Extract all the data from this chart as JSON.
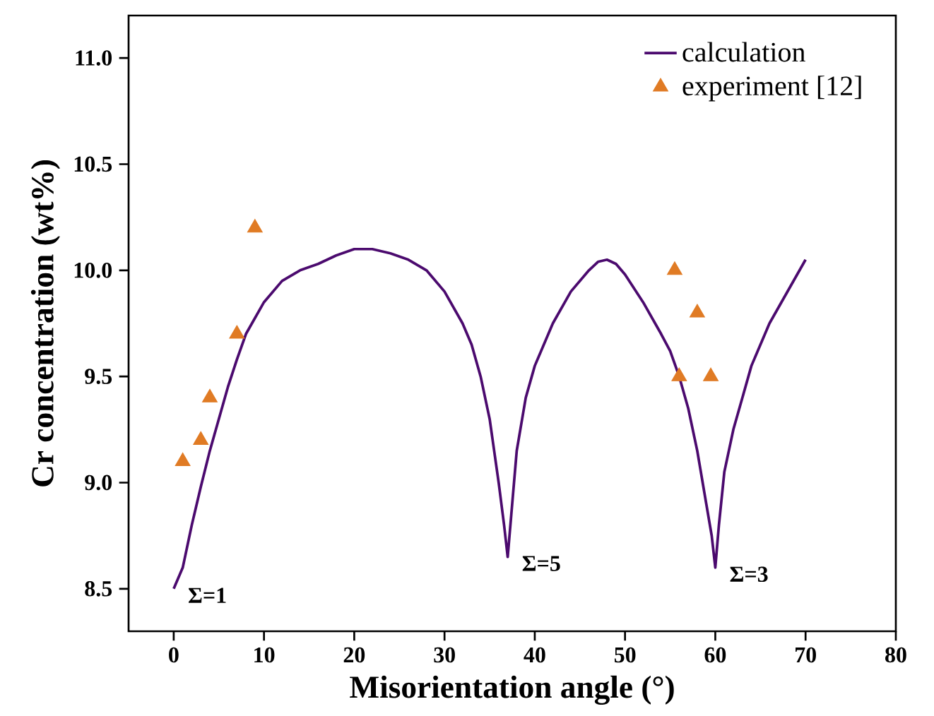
{
  "chart_data": {
    "type": "line",
    "xlabel": "Misorientation angle (°)",
    "ylabel": "Cr concentration (wt%)",
    "xlim": [
      -5,
      80
    ],
    "ylim": [
      8.3,
      11.2
    ],
    "xticks": [
      0,
      10,
      20,
      30,
      40,
      50,
      60,
      70,
      80
    ],
    "yticks": [
      {
        "value": 8.5,
        "label": "8.5"
      },
      {
        "value": 9.0,
        "label": "9.0"
      },
      {
        "value": 9.5,
        "label": "9.5"
      },
      {
        "value": 10.0,
        "label": "10.0"
      },
      {
        "value": 10.5,
        "label": "10.5"
      },
      {
        "value": 11.0,
        "label": "11.0"
      }
    ],
    "grid": false,
    "legend": "top right",
    "series": [
      {
        "name": "calculation",
        "color": "#4b0a6e",
        "marker": "none",
        "x": [
          0,
          1,
          2,
          3,
          4,
          5,
          6,
          7,
          8,
          10,
          12,
          14,
          16,
          18,
          20,
          22,
          24,
          26,
          28,
          30,
          32,
          33,
          34,
          35,
          36,
          36.6,
          37,
          37.4,
          38,
          39,
          40,
          42,
          44,
          46,
          47,
          48,
          49,
          50,
          52,
          54,
          55,
          56,
          57,
          58,
          59,
          59.6,
          60,
          60.4,
          61,
          62,
          63,
          64,
          66,
          68,
          70
        ],
        "values": [
          8.5,
          8.6,
          8.8,
          8.98,
          9.15,
          9.3,
          9.45,
          9.58,
          9.7,
          9.85,
          9.95,
          10.0,
          10.03,
          10.07,
          10.1,
          10.1,
          10.08,
          10.05,
          10.0,
          9.9,
          9.75,
          9.65,
          9.5,
          9.3,
          9.0,
          8.8,
          8.65,
          8.85,
          9.15,
          9.4,
          9.55,
          9.75,
          9.9,
          10.0,
          10.04,
          10.05,
          10.03,
          9.98,
          9.85,
          9.7,
          9.62,
          9.5,
          9.35,
          9.15,
          8.9,
          8.75,
          8.6,
          8.8,
          9.05,
          9.25,
          9.4,
          9.55,
          9.75,
          9.9,
          10.05
        ]
      },
      {
        "name": "experiment [12]",
        "type": "scatter",
        "color": "#e07b24",
        "marker": "triangle",
        "x": [
          1,
          3,
          4,
          7,
          9,
          55.5,
          56,
          58,
          59.5
        ],
        "values": [
          9.1,
          9.2,
          9.4,
          9.7,
          10.2,
          10.0,
          9.5,
          9.8,
          9.5
        ]
      }
    ],
    "annotations": [
      {
        "text": "Σ=1",
        "x": 0,
        "y": 8.5
      },
      {
        "text": "Σ=5",
        "x": 37,
        "y": 8.65
      },
      {
        "text": "Σ=3",
        "x": 60,
        "y": 8.6
      }
    ]
  }
}
